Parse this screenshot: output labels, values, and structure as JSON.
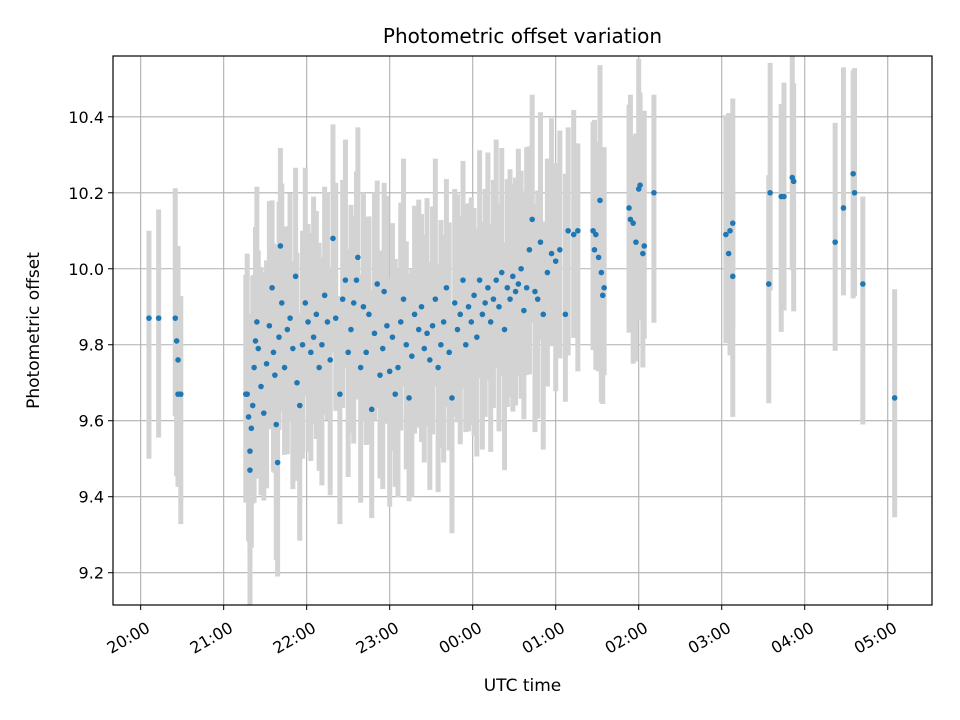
{
  "chart_data": {
    "type": "scatter",
    "title": "Photometric offset variation",
    "xlabel": "UTC time",
    "ylabel": "Photometric offset",
    "x_unit": "hours after 20:00 UTC (axis shows clock time)",
    "xlim": [
      "19:40",
      "05:32"
    ],
    "ylim": [
      9.115,
      10.56
    ],
    "grid": true,
    "x_ticks": [
      "20:00",
      "21:00",
      "22:00",
      "23:00",
      "00:00",
      "01:00",
      "02:00",
      "03:00",
      "04:00",
      "05:00"
    ],
    "y_ticks": [
      "9.2",
      "9.4",
      "9.6",
      "9.8",
      "10.0",
      "10.2",
      "10.4"
    ],
    "colors": {
      "points": "#1f77b4",
      "errorbars": "#d3d3d3",
      "grid": "#b0b0b0"
    },
    "series": [
      {
        "error_half_width": 0.3,
        "points": [
          [
            "20:06",
            9.87
          ],
          [
            "20:13",
            9.87
          ],
          [
            "20:25",
            9.87
          ],
          [
            "20:26",
            9.81
          ],
          [
            "20:27",
            9.76
          ],
          [
            "20:27",
            9.67
          ],
          [
            "20:29",
            9.67
          ],
          [
            "21:16",
            9.67
          ],
          [
            "21:17",
            9.67
          ],
          [
            "21:18",
            9.61
          ],
          [
            "21:19",
            9.52
          ],
          [
            "21:19",
            9.47
          ],
          [
            "21:20",
            9.58
          ],
          [
            "21:21",
            9.64
          ],
          [
            "21:22",
            9.74
          ],
          [
            "21:23",
            9.81
          ],
          [
            "21:24",
            9.86
          ],
          [
            "21:25",
            9.79
          ],
          [
            "21:27",
            9.69
          ],
          [
            "21:29",
            9.62
          ],
          [
            "21:31",
            9.75
          ],
          [
            "21:33",
            9.85
          ],
          [
            "21:35",
            9.95
          ],
          [
            "21:36",
            9.78
          ],
          [
            "21:37",
            9.72
          ],
          [
            "21:38",
            9.59
          ],
          [
            "21:39",
            9.49
          ],
          [
            "21:40",
            9.82
          ],
          [
            "21:41",
            10.06
          ],
          [
            "21:42",
            9.91
          ],
          [
            "21:44",
            9.74
          ],
          [
            "21:46",
            9.84
          ],
          [
            "21:48",
            9.87
          ],
          [
            "21:50",
            9.79
          ],
          [
            "21:52",
            9.98
          ],
          [
            "21:53",
            9.7
          ],
          [
            "21:55",
            9.64
          ],
          [
            "21:57",
            9.8
          ],
          [
            "21:59",
            9.91
          ],
          [
            "22:01",
            9.86
          ],
          [
            "22:03",
            9.78
          ],
          [
            "22:05",
            9.82
          ],
          [
            "22:07",
            9.88
          ],
          [
            "22:09",
            9.74
          ],
          [
            "22:11",
            9.8
          ],
          [
            "22:13",
            9.93
          ],
          [
            "22:15",
            9.86
          ],
          [
            "22:17",
            9.76
          ],
          [
            "22:19",
            10.08
          ],
          [
            "22:21",
            9.87
          ],
          [
            "22:24",
            9.67
          ],
          [
            "22:26",
            9.92
          ],
          [
            "22:28",
            9.97
          ],
          [
            "22:30",
            9.78
          ],
          [
            "22:32",
            9.84
          ],
          [
            "22:34",
            9.91
          ],
          [
            "22:36",
            9.97
          ],
          [
            "22:37",
            10.03
          ],
          [
            "22:39",
            9.74
          ],
          [
            "22:41",
            9.9
          ],
          [
            "22:43",
            9.78
          ],
          [
            "22:45",
            9.88
          ],
          [
            "22:47",
            9.63
          ],
          [
            "22:49",
            9.83
          ],
          [
            "22:51",
            9.96
          ],
          [
            "22:53",
            9.72
          ],
          [
            "22:55",
            9.79
          ],
          [
            "22:56",
            9.94
          ],
          [
            "22:58",
            9.85
          ],
          [
            "23:00",
            9.73
          ],
          [
            "23:02",
            9.82
          ],
          [
            "23:04",
            9.67
          ],
          [
            "23:06",
            9.74
          ],
          [
            "23:08",
            9.86
          ],
          [
            "23:10",
            9.92
          ],
          [
            "23:12",
            9.8
          ],
          [
            "23:14",
            9.66
          ],
          [
            "23:16",
            9.77
          ],
          [
            "23:18",
            9.88
          ],
          [
            "23:21",
            9.84
          ],
          [
            "23:23",
            9.9
          ],
          [
            "23:25",
            9.79
          ],
          [
            "23:27",
            9.83
          ],
          [
            "23:29",
            9.76
          ],
          [
            "23:31",
            9.85
          ],
          [
            "23:33",
            9.92
          ],
          [
            "23:35",
            9.74
          ],
          [
            "23:37",
            9.8
          ],
          [
            "23:39",
            9.86
          ],
          [
            "23:41",
            9.95
          ],
          [
            "23:43",
            9.78
          ],
          [
            "23:45",
            9.66
          ],
          [
            "23:47",
            9.91
          ],
          [
            "23:49",
            9.84
          ],
          [
            "23:51",
            9.88
          ],
          [
            "23:53",
            9.97
          ],
          [
            "23:55",
            9.8
          ],
          [
            "23:57",
            9.9
          ],
          [
            "23:59",
            9.86
          ],
          [
            "00:01",
            9.93
          ],
          [
            "00:03",
            9.82
          ],
          [
            "00:05",
            9.97
          ],
          [
            "00:07",
            9.88
          ],
          [
            "00:09",
            9.91
          ],
          [
            "00:11",
            9.95
          ],
          [
            "00:13",
            9.86
          ],
          [
            "00:15",
            9.92
          ],
          [
            "00:17",
            9.97
          ],
          [
            "00:19",
            9.9
          ],
          [
            "00:21",
            9.99
          ],
          [
            "00:23",
            9.84
          ],
          [
            "00:25",
            9.95
          ],
          [
            "00:27",
            9.92
          ],
          [
            "00:29",
            9.98
          ],
          [
            "00:31",
            9.94
          ],
          [
            "00:33",
            9.96
          ],
          [
            "00:35",
            10.0
          ],
          [
            "00:37",
            9.89
          ],
          [
            "00:39",
            9.95
          ],
          [
            "00:41",
            10.05
          ],
          [
            "00:43",
            10.13
          ],
          [
            "00:45",
            9.94
          ],
          [
            "00:47",
            9.92
          ],
          [
            "00:49",
            10.07
          ],
          [
            "00:51",
            9.88
          ],
          [
            "00:54",
            9.99
          ],
          [
            "00:57",
            10.04
          ],
          [
            "01:00",
            10.02
          ],
          [
            "01:03",
            10.05
          ],
          [
            "01:07",
            9.88
          ],
          [
            "01:09",
            10.1
          ],
          [
            "01:13",
            10.09
          ],
          [
            "01:16",
            10.1
          ],
          [
            "01:27",
            10.1
          ],
          [
            "01:28",
            10.05
          ],
          [
            "01:29",
            10.09
          ],
          [
            "01:31",
            10.03
          ],
          [
            "01:32",
            10.18
          ],
          [
            "01:33",
            9.99
          ],
          [
            "01:34",
            9.93
          ],
          [
            "01:35",
            9.95
          ],
          [
            "01:53",
            10.16
          ],
          [
            "01:54",
            10.13
          ],
          [
            "01:56",
            10.12
          ],
          [
            "01:58",
            10.07
          ],
          [
            "02:00",
            10.21
          ],
          [
            "02:01",
            10.22
          ],
          [
            "02:03",
            10.04
          ],
          [
            "02:04",
            10.06
          ],
          [
            "02:11",
            10.2
          ],
          [
            "03:03",
            10.09
          ],
          [
            "03:05",
            10.04
          ],
          [
            "03:06",
            10.1
          ],
          [
            "03:08",
            10.12
          ],
          [
            "03:08",
            9.98
          ],
          [
            "03:34",
            9.96
          ],
          [
            "03:35",
            10.2
          ],
          [
            "03:43",
            10.19
          ],
          [
            "03:45",
            10.19
          ],
          [
            "03:51",
            10.24
          ],
          [
            "03:52",
            10.23
          ],
          [
            "04:22",
            10.07
          ],
          [
            "04:28",
            10.16
          ],
          [
            "04:35",
            10.25
          ],
          [
            "04:36",
            10.2
          ],
          [
            "04:42",
            9.96
          ],
          [
            "05:05",
            9.66
          ]
        ]
      }
    ]
  }
}
